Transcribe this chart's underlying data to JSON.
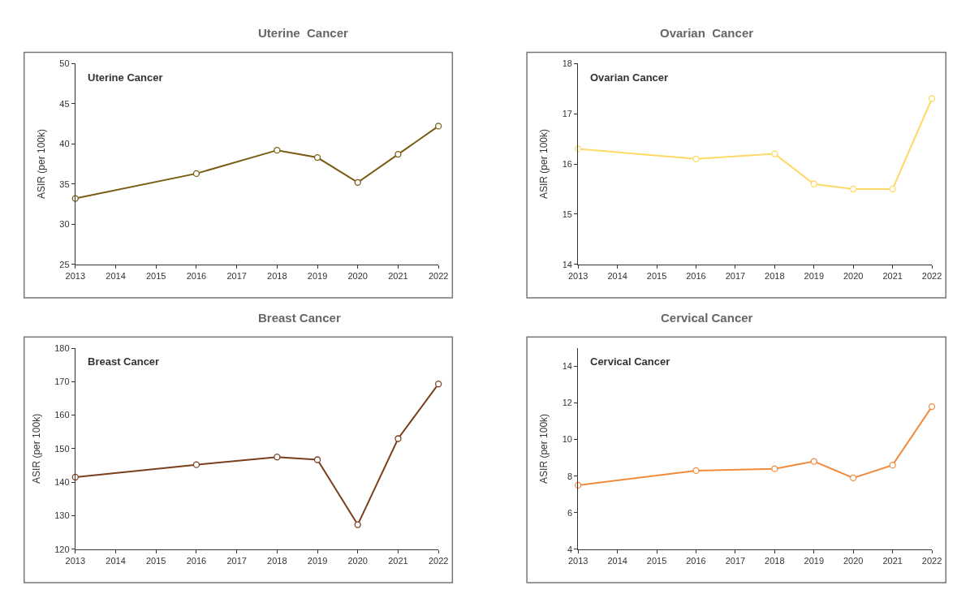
{
  "chart_data": [
    {
      "type": "line",
      "title": "Uterine  Cancer",
      "ylabel": "ASIR (per 100k)",
      "annotations": [
        "Uterine Cancer"
      ],
      "x": [
        2013,
        2016,
        2018,
        2019,
        2020,
        2021,
        2022
      ],
      "series": [
        {
          "color": "#7a5c12",
          "values": [
            33.2,
            36.3,
            39.2,
            38.3,
            35.2,
            38.7,
            42.2
          ]
        }
      ],
      "xlim": [
        2013,
        2022
      ],
      "xticks": [
        2013,
        2014,
        2015,
        2016,
        2017,
        2018,
        2019,
        2020,
        2021,
        2022
      ],
      "ylim": [
        25,
        50
      ],
      "yticks": [
        25,
        30,
        35,
        40,
        45,
        50
      ],
      "marker": "circle",
      "line_style": "solid"
    },
    {
      "type": "line",
      "title": "Ovarian  Cancer",
      "ylabel": "ASIR (per 100k)",
      "annotations": [
        "Ovarian Cancer"
      ],
      "x": [
        2013,
        2016,
        2018,
        2019,
        2020,
        2021,
        2022
      ],
      "series": [
        {
          "color": "#ffd966",
          "values": [
            16.3,
            16.1,
            16.2,
            15.6,
            15.5,
            15.5,
            17.3
          ]
        }
      ],
      "xlim": [
        2013,
        2022
      ],
      "xticks": [
        2013,
        2014,
        2015,
        2016,
        2017,
        2018,
        2019,
        2020,
        2021,
        2022
      ],
      "ylim": [
        14,
        18
      ],
      "yticks": [
        14,
        15,
        16,
        17,
        18
      ],
      "marker": "circle",
      "line_style": "solid"
    },
    {
      "type": "line",
      "title": "Breast Cancer",
      "ylabel": "ASIR (per 100k)",
      "annotations": [
        "Breast Cancer"
      ],
      "x": [
        2013,
        2016,
        2018,
        2019,
        2020,
        2021,
        2022
      ],
      "series": [
        {
          "color": "#7b3f1e",
          "values": [
            141.5,
            145.2,
            147.5,
            146.7,
            127.3,
            153,
            169.3
          ]
        }
      ],
      "xlim": [
        2013,
        2022
      ],
      "xticks": [
        2013,
        2014,
        2015,
        2016,
        2017,
        2018,
        2019,
        2020,
        2021,
        2022
      ],
      "ylim": [
        120,
        180
      ],
      "yticks": [
        120,
        130,
        140,
        150,
        160,
        170,
        180
      ],
      "marker": "circle",
      "line_style": "solid"
    },
    {
      "type": "line",
      "title": "Cervical Cancer",
      "ylabel": "ASIR (per 100k)",
      "annotations": [
        "Cervical Cancer"
      ],
      "x": [
        2013,
        2016,
        2018,
        2019,
        2020,
        2021,
        2022
      ],
      "series": [
        {
          "color": "#f08a3c",
          "values": [
            7.5,
            8.3,
            8.4,
            8.8,
            7.9,
            8.6,
            11.8
          ]
        }
      ],
      "xlim": [
        2013,
        2022
      ],
      "xticks": [
        2013,
        2014,
        2015,
        2016,
        2017,
        2018,
        2019,
        2020,
        2021,
        2022
      ],
      "ylim": [
        4,
        15
      ],
      "yticks": [
        4,
        6,
        8,
        10,
        12,
        14
      ],
      "marker": "circle",
      "line_style": "solid"
    }
  ]
}
